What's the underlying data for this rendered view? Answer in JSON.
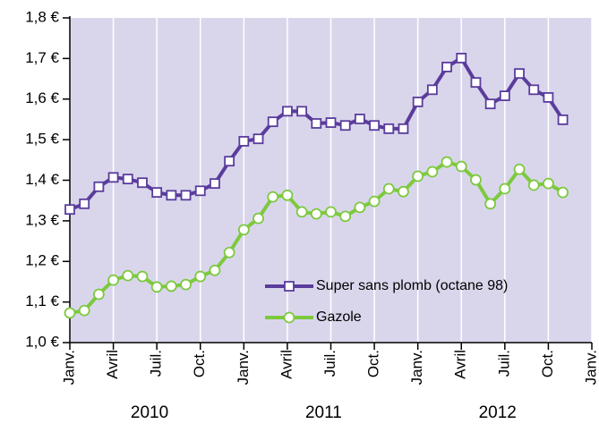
{
  "chart_data": {
    "type": "line",
    "categories": [
      "Janv.",
      null,
      null,
      "Avril",
      null,
      null,
      "Juil.",
      null,
      null,
      "Oct.",
      null,
      null,
      "Janv.",
      null,
      null,
      "Avril",
      null,
      null,
      "Juil.",
      null,
      null,
      "Oct.",
      null,
      null,
      "Janv.",
      null,
      null,
      "Avril",
      null,
      null,
      "Juil.",
      null,
      null,
      "Oct.",
      null,
      null,
      "Janv."
    ],
    "years": [
      "2010",
      "2011",
      "2012"
    ],
    "series": [
      {
        "name": "Super sans plomb (octane 98)",
        "color": "#5a3c9c",
        "marker": "square",
        "values": [
          1.328,
          1.342,
          1.384,
          1.407,
          1.403,
          1.394,
          1.37,
          1.363,
          1.363,
          1.374,
          1.392,
          1.447,
          1.496,
          1.502,
          1.544,
          1.57,
          1.57,
          1.54,
          1.542,
          1.535,
          1.551,
          1.535,
          1.527,
          1.527,
          1.593,
          1.623,
          1.679,
          1.701,
          1.641,
          1.588,
          1.608,
          1.663,
          1.623,
          1.604,
          1.549,
          null,
          null
        ]
      },
      {
        "name": "Gazole",
        "color": "#7dc93e",
        "marker": "circle",
        "values": [
          1.073,
          1.079,
          1.119,
          1.154,
          1.165,
          1.163,
          1.137,
          1.139,
          1.143,
          1.163,
          1.178,
          1.222,
          1.278,
          1.306,
          1.359,
          1.363,
          1.322,
          1.317,
          1.322,
          1.311,
          1.333,
          1.348,
          1.379,
          1.372,
          1.41,
          1.421,
          1.445,
          1.434,
          1.401,
          1.342,
          1.379,
          1.427,
          1.388,
          1.392,
          1.37,
          null,
          null
        ]
      }
    ],
    "ylim": [
      1.0,
      1.8
    ],
    "yticks": [
      {
        "value": 1.0,
        "label": "1,0 €"
      },
      {
        "value": 1.1,
        "label": "1,1 €"
      },
      {
        "value": 1.2,
        "label": "1,2 €"
      },
      {
        "value": 1.3,
        "label": "1,3 €"
      },
      {
        "value": 1.4,
        "label": "1,4 €"
      },
      {
        "value": 1.5,
        "label": "1,5 €"
      },
      {
        "value": 1.6,
        "label": "1,6 €"
      },
      {
        "value": 1.7,
        "label": "1,7 €"
      },
      {
        "value": 1.8,
        "label": "1,8 €"
      }
    ],
    "background": "#d9d6ec",
    "grid": true
  }
}
